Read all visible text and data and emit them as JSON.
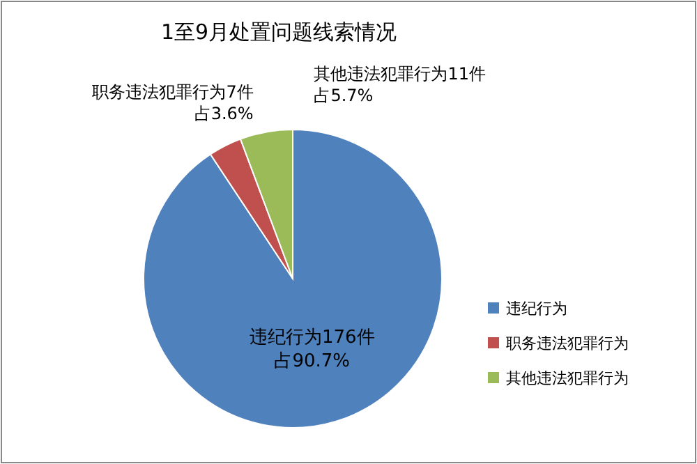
{
  "chart_data": {
    "type": "pie",
    "title": "1至9月处置问题线索情况",
    "categories": [
      "违纪行为",
      "职务违法犯罪行为",
      "其他违法犯罪行为"
    ],
    "values": [
      90.7,
      3.6,
      5.7
    ],
    "colors": [
      "#4f81bd",
      "#c0504d",
      "#9bbb59"
    ],
    "value_labels": [
      [
        "违纪行为176件",
        "占90.7%"
      ],
      [
        "职务违法犯罪行为7件",
        "占3.6%"
      ],
      [
        "其他违法犯罪行为11件",
        "占5.7%"
      ]
    ],
    "legend": "right"
  }
}
